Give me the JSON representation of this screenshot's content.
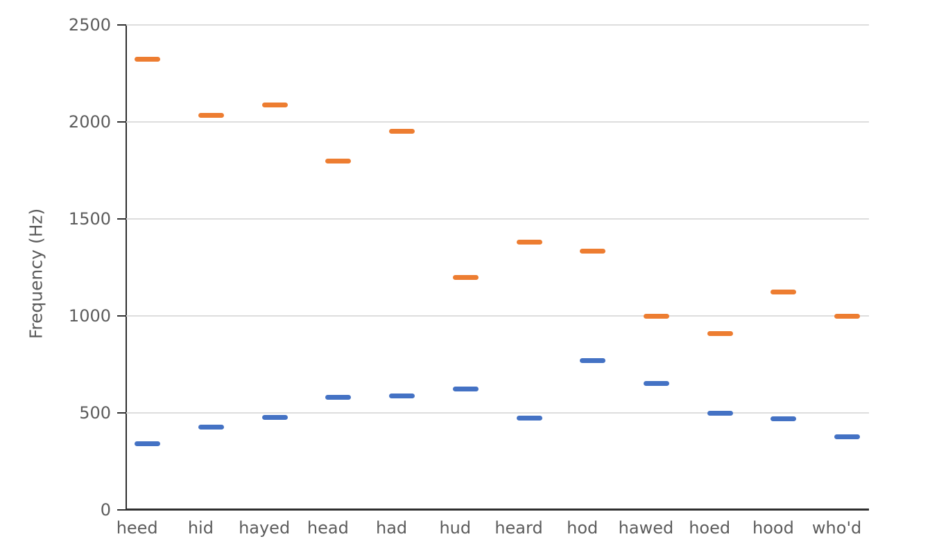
{
  "chart_data": {
    "type": "scatter",
    "marker_style": "horizontal-dash",
    "title": "",
    "xlabel": "",
    "ylabel": "Frequency (Hz)",
    "categories": [
      "heed",
      "hid",
      "hayed",
      "head",
      "had",
      "hud",
      "heard",
      "hod",
      "hawed",
      "hoed",
      "hood",
      "who'd"
    ],
    "series": [
      {
        "name": "blue",
        "color": "#4472C4",
        "values": [
          342,
          427,
          476,
          580,
          588,
          623,
          474,
          768,
          652,
          497,
          469,
          378
        ]
      },
      {
        "name": "orange",
        "color": "#ED7D31",
        "values": [
          2322,
          2034,
          2089,
          1799,
          1952,
          1200,
          1379,
          1333,
          997,
          910,
          1122,
          997
        ]
      }
    ],
    "ylim": [
      0,
      2500
    ],
    "yticks": [
      0,
      500,
      1000,
      1500,
      2000,
      2500
    ],
    "grid": true,
    "legend": false
  },
  "colors": {
    "background": "#ffffff",
    "grid": "#dddddd",
    "axis": "#2f2f2f",
    "text": "#5c5c5c",
    "series_blue": "#4472C4",
    "series_orange": "#ED7D31"
  }
}
